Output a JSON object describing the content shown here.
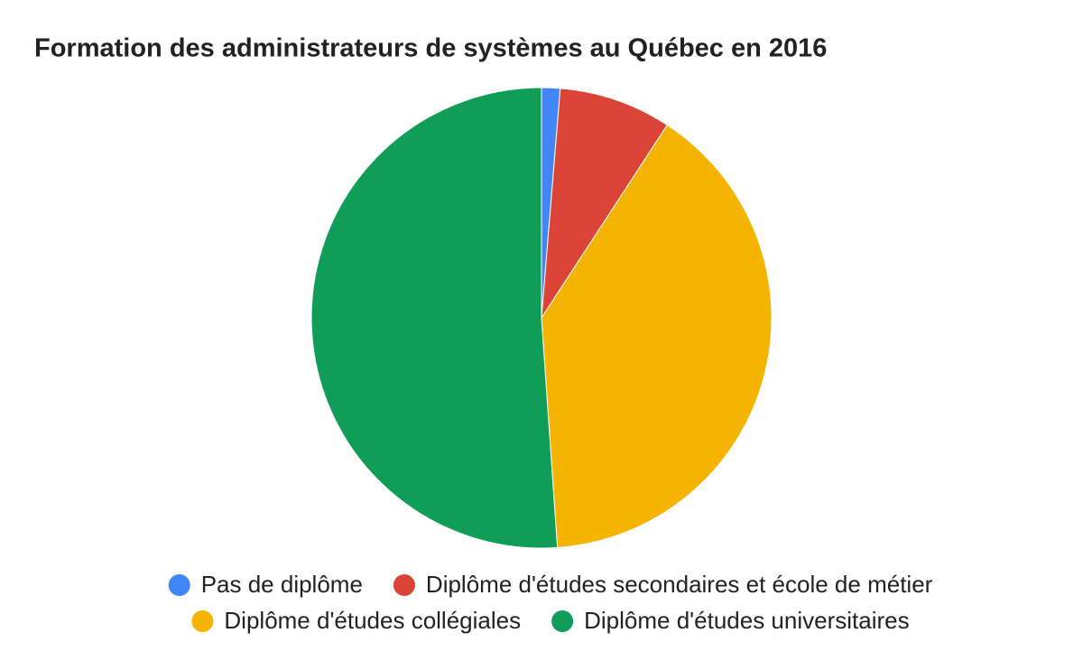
{
  "chart_data": {
    "type": "pie",
    "title": "Formation des administrateurs de systèmes au Québec en 2016",
    "categories": [
      "Pas de diplôme",
      "Diplôme d'études secondaires et école de métier",
      "Diplôme d'études collégiales",
      "Diplôme d'études universitaires"
    ],
    "values": [
      1.3,
      7.9,
      39.7,
      51.1
    ],
    "colors": [
      "#4285f4",
      "#db4437",
      "#f4b400",
      "#0f9d58"
    ],
    "legend": "bottom"
  }
}
